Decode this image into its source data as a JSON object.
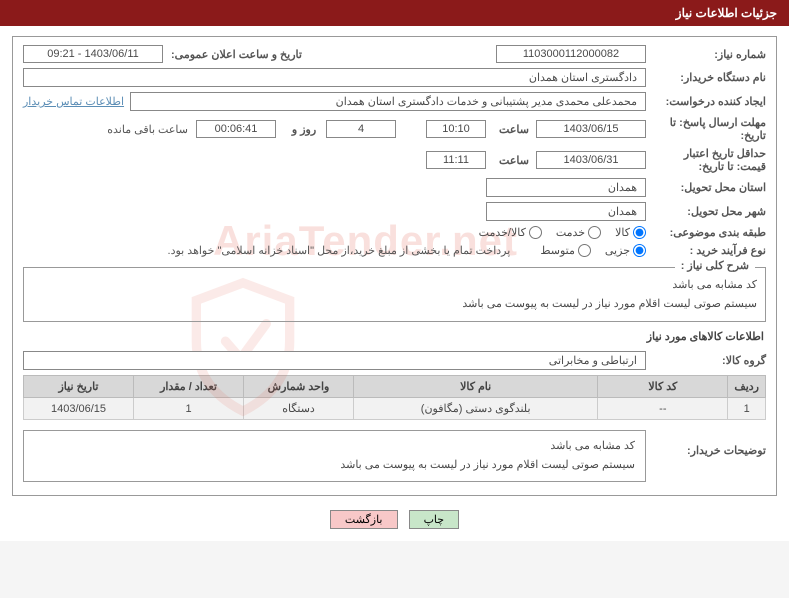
{
  "header": {
    "title": "جزئیات اطلاعات نیاز"
  },
  "rows": {
    "need_no": {
      "label": "شماره نیاز:",
      "value": "1103000112000082"
    },
    "announce": {
      "label": "تاریخ و ساعت اعلان عمومی:",
      "value": "1403/06/11 - 09:21"
    },
    "buyer_org": {
      "label": "نام دستگاه خریدار:",
      "value": "دادگستری استان همدان"
    },
    "requester": {
      "label": "ایجاد کننده درخواست:",
      "value": "محمدعلی محمدی مدیر پشتیبانی و خدمات دادگستری استان همدان",
      "link": "اطلاعات تماس خریدار"
    },
    "deadline": {
      "label": "مهلت ارسال پاسخ: تا تاریخ:",
      "date": "1403/06/15",
      "time_label": "ساعت",
      "time": "10:10",
      "days": "4",
      "days_label": "روز و",
      "hms": "00:06:41",
      "remain_label": "ساعت باقی مانده"
    },
    "validity": {
      "label": "حداقل تاریخ اعتبار قیمت: تا تاریخ:",
      "date": "1403/06/31",
      "time_label": "ساعت",
      "time": "11:11"
    },
    "province": {
      "label": "استان محل تحویل:",
      "value": "همدان"
    },
    "city": {
      "label": "شهر محل تحویل:",
      "value": "همدان"
    },
    "category": {
      "label": "طبقه بندی موضوعی:",
      "options": [
        "کالا",
        "خدمت",
        "کالا/خدمت"
      ],
      "selected": 0
    },
    "proc_type": {
      "label": "نوع فرآیند خرید :",
      "options": [
        "جزیی",
        "متوسط"
      ],
      "selected": 0,
      "note": "پرداخت تمام یا بخشی از مبلغ خرید،از محل \"اسناد خزانه اسلامی\" خواهد بود."
    }
  },
  "need_desc": {
    "legend": "شرح کلی نیاز :",
    "text": "کد مشابه می باشد\nسیستم صوتی  لیست اقلام مورد نیاز در لیست  به پیوست می باشد"
  },
  "goods_section": {
    "title": "اطلاعات کالاهای مورد نیاز"
  },
  "goods_group": {
    "label": "گروه کالا:",
    "value": "ارتباطی و مخابراتی"
  },
  "table": {
    "headers": [
      "ردیف",
      "کد کالا",
      "نام کالا",
      "واحد شمارش",
      "تعداد / مقدار",
      "تاریخ نیاز"
    ],
    "col_widths": [
      "35px",
      "130px",
      "auto",
      "110px",
      "110px",
      "110px"
    ],
    "rows": [
      [
        "1",
        "--",
        "بلندگوی دستی (مگافون)",
        "دستگاه",
        "1",
        "1403/06/15"
      ]
    ]
  },
  "buyer_notes": {
    "label": "توضیحات خریدار:",
    "text": "کد مشابه می باشد\nسیستم صوتی  لیست اقلام مورد نیاز در لیست  به پیوست می باشد"
  },
  "buttons": {
    "print": "چاپ",
    "back": "بازگشت"
  },
  "watermark": "AriaTender.net"
}
